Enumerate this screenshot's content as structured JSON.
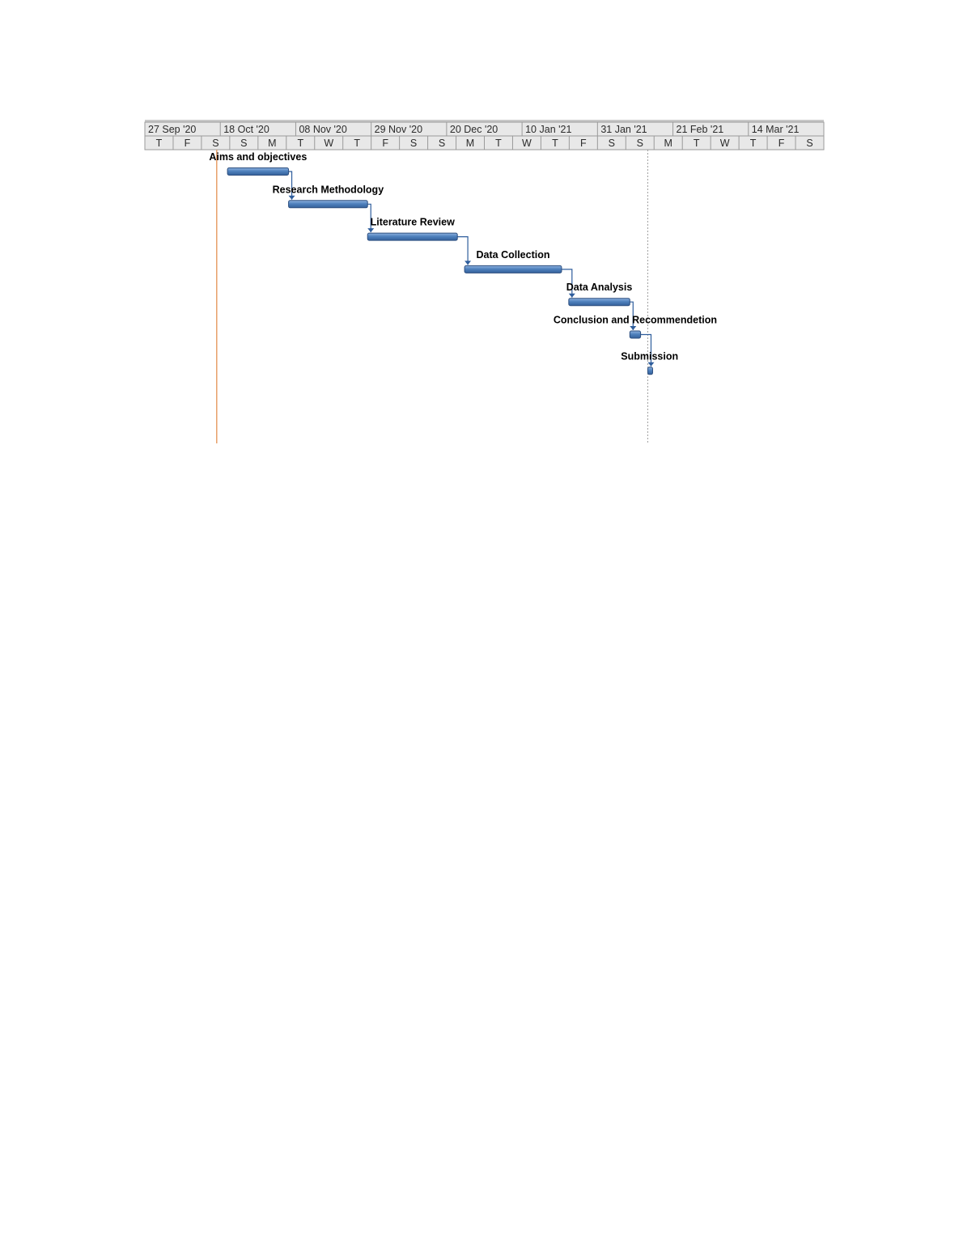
{
  "colors": {
    "header_bg": "#e8e8e8",
    "header_line": "#9a9a9a",
    "bar_fill": "#4f81bd",
    "bar_edge": "#2e4f7f",
    "link_line": "#2e5d9c",
    "today_line": "#e8a06a",
    "deadline_line": "#a0a0a0"
  },
  "chart_data": {
    "type": "gantt",
    "timescale": {
      "periods": [
        "27 Sep '20",
        "18 Oct '20",
        "08 Nov '20",
        "29 Nov '20",
        "20 Dec '20",
        "10 Jan '21",
        "31 Jan '21",
        "21 Feb '21",
        "14 Mar '21"
      ],
      "days": [
        "T",
        "F",
        "S",
        "S",
        "M",
        "T",
        "W",
        "T",
        "F",
        "S",
        "S",
        "M",
        "T",
        "W",
        "T",
        "F",
        "S",
        "S",
        "M",
        "T",
        "W",
        "T",
        "F",
        "S"
      ],
      "start": "2020-09-27",
      "end": "2021-04-04"
    },
    "tasks": [
      {
        "name": "Aims and objectives",
        "start": "2020-10-20",
        "end": "2020-11-06"
      },
      {
        "name": "Research Methodology",
        "start": "2020-11-06",
        "end": "2020-11-28"
      },
      {
        "name": "Literature Review",
        "start": "2020-11-28",
        "end": "2020-12-23"
      },
      {
        "name": "Data Collection",
        "start": "2020-12-25",
        "end": "2021-01-21"
      },
      {
        "name": "Data Analysis",
        "start": "2021-01-23",
        "end": "2021-02-09"
      },
      {
        "name": "Conclusion and Recommendetion",
        "start": "2021-02-09",
        "end": "2021-02-12"
      },
      {
        "name": "Submission",
        "start": "2021-02-14",
        "end": "2021-02-15"
      }
    ],
    "dependencies": [
      [
        0,
        1
      ],
      [
        1,
        2
      ],
      [
        2,
        3
      ],
      [
        3,
        4
      ],
      [
        4,
        5
      ],
      [
        5,
        6
      ]
    ],
    "today_marker": "2020-10-17",
    "deadline_marker": "2021-02-14"
  }
}
